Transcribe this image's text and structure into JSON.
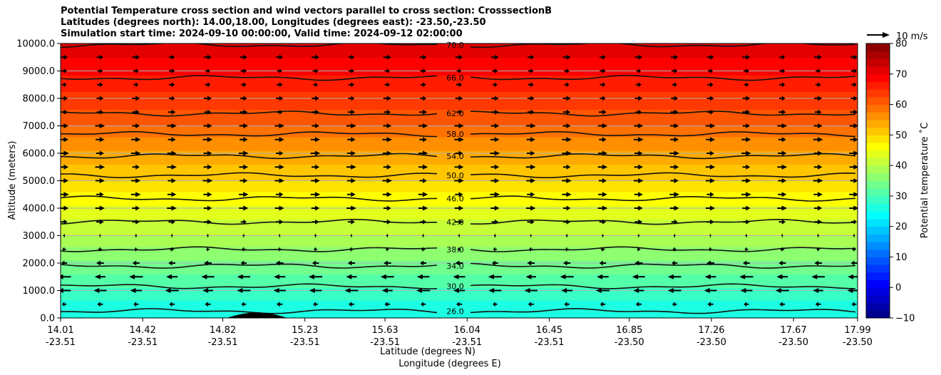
{
  "chart_data": {
    "type": "heatmap",
    "title_lines": [
      "Potential Temperature cross section and wind vectors parallel to cross section: CrosssectionB",
      "Latitudes (degrees north): 14.00,18.00, Longitudes (degrees east): -23.50,-23.50",
      "Simulation start time: 2024-09-10 00:00:00, Valid time: 2024-09-12 02:00:00"
    ],
    "xlabel": "Latitude (degrees N)",
    "xlabel2": "Longitude (degrees E)",
    "ylabel": "Altitude (meters)",
    "colorbar_label": "Potential temperature ˚C",
    "quiver_key_label": "10 m/s",
    "x_ticks": [
      {
        "lat": "14.01",
        "lon": "-23.51"
      },
      {
        "lat": "14.42",
        "lon": "-23.51"
      },
      {
        "lat": "14.82",
        "lon": "-23.51"
      },
      {
        "lat": "15.23",
        "lon": "-23.51"
      },
      {
        "lat": "15.63",
        "lon": "-23.51"
      },
      {
        "lat": "16.04",
        "lon": "-23.51"
      },
      {
        "lat": "16.45",
        "lon": "-23.51"
      },
      {
        "lat": "16.85",
        "lon": "-23.50"
      },
      {
        "lat": "17.26",
        "lon": "-23.50"
      },
      {
        "lat": "17.67",
        "lon": "-23.50"
      },
      {
        "lat": "17.99",
        "lon": "-23.50"
      }
    ],
    "y_ticks": [
      "0.0",
      "1000.0",
      "2000.0",
      "3000.0",
      "4000.0",
      "5000.0",
      "6000.0",
      "7000.0",
      "8000.0",
      "9000.0",
      "10000.0"
    ],
    "ylim": [
      0,
      10000
    ],
    "colorbar_ticks": [
      "−10",
      "0",
      "10",
      "20",
      "30",
      "40",
      "50",
      "60",
      "70",
      "80"
    ],
    "colorbar_range": [
      -10,
      80
    ],
    "colormap": "jet",
    "temperature_profile": {
      "altitude_m": [
        0,
        500,
        1000,
        1500,
        2000,
        2500,
        3000,
        3500,
        4000,
        4500,
        5000,
        5500,
        6000,
        6500,
        7000,
        7500,
        8000,
        8500,
        9000,
        9500,
        10000
      ],
      "theta_c": [
        25,
        26.8,
        29.5,
        32,
        34.5,
        37,
        40,
        42,
        44.5,
        47,
        50,
        52,
        54.5,
        57,
        60,
        62,
        64,
        66,
        68,
        70,
        72
      ]
    },
    "contours": [
      {
        "label": "26.0",
        "altitude_m": 250
      },
      {
        "label": "30.0",
        "altitude_m": 1150
      },
      {
        "label": "34.0",
        "altitude_m": 1900
      },
      {
        "label": "38.0",
        "altitude_m": 2500
      },
      {
        "label": "42.0",
        "altitude_m": 3500
      },
      {
        "label": "46.0",
        "altitude_m": 4350
      },
      {
        "label": "50.0",
        "altitude_m": 5200
      },
      {
        "label": "54.0",
        "altitude_m": 5900
      },
      {
        "label": "58.0",
        "altitude_m": 6700
      },
      {
        "label": "62.0",
        "altitude_m": 7450
      },
      {
        "label": "66.0",
        "altitude_m": 8750
      },
      {
        "label": "70.0",
        "altitude_m": 9950
      }
    ],
    "wind_profile": {
      "altitude_m": [
        500,
        1000,
        1500,
        2000,
        2500,
        3000,
        3500,
        4000,
        4500,
        5000,
        5500,
        6000,
        6500,
        7000,
        7500,
        8000,
        8500,
        9000,
        9500
      ],
      "u_ms": [
        -3,
        -7,
        -7,
        -4,
        -2,
        1,
        4,
        5,
        5,
        5,
        5,
        5,
        5,
        5,
        4,
        4,
        3,
        3,
        4
      ]
    },
    "grid": true,
    "terrain_peak": {
      "lat": 15.0,
      "altitude_m": 200
    }
  }
}
